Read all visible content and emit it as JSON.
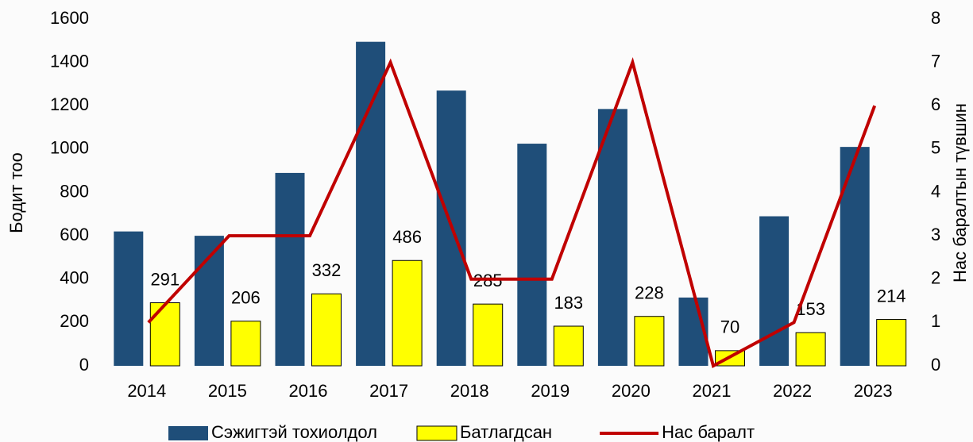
{
  "chart_data": {
    "type": "bar",
    "categories": [
      "2014",
      "2015",
      "2016",
      "2017",
      "2018",
      "2019",
      "2020",
      "2021",
      "2022",
      "2023"
    ],
    "series": [
      {
        "name": "Сэжигтэй тохиолдол",
        "type": "bar",
        "color": "#1f4e79",
        "values": [
          620,
          600,
          890,
          1495,
          1270,
          1025,
          1185,
          315,
          690,
          1010
        ]
      },
      {
        "name": "Батлагдсан",
        "type": "bar",
        "color": "#ffff00",
        "values": [
          291,
          206,
          332,
          486,
          285,
          183,
          228,
          70,
          153,
          214
        ],
        "show_labels": true
      },
      {
        "name": "Нас баралт",
        "type": "line",
        "axis": "y2",
        "color": "#c00000",
        "values": [
          1,
          3,
          3,
          7,
          2,
          2,
          7,
          0,
          1,
          6
        ]
      }
    ],
    "ylabel": "Бодит тоо",
    "y2label": "Нас баралтын түвшин",
    "ylim": [
      0,
      1600
    ],
    "yticks": [
      0,
      200,
      400,
      600,
      800,
      1000,
      1200,
      1400,
      1600
    ],
    "y2lim": [
      0,
      8
    ],
    "y2ticks": [
      0,
      1,
      2,
      3,
      4,
      5,
      6,
      7,
      8
    ],
    "legend": "bottom"
  }
}
